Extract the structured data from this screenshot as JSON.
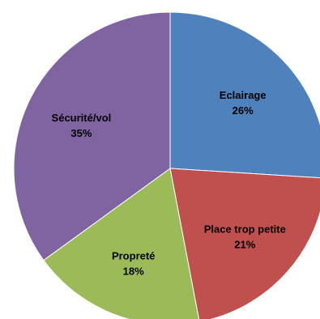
{
  "chart_data": {
    "type": "pie",
    "title": "",
    "slices": [
      {
        "label": "Eclairage",
        "value": 26,
        "value_label": "26%",
        "color": "#4F81BD"
      },
      {
        "label": "Place trop petite",
        "value": 21,
        "value_label": "21%",
        "color": "#C0504D"
      },
      {
        "label": "Propreté",
        "value": 18,
        "value_label": "18%",
        "color": "#9BBB59"
      },
      {
        "label": "Sécurité/vol",
        "value": 35,
        "value_label": "35%",
        "color": "#8064A2"
      }
    ],
    "start": "12 o'clock, clockwise",
    "legend": "none",
    "labels": "inside slices, category and percentage"
  }
}
